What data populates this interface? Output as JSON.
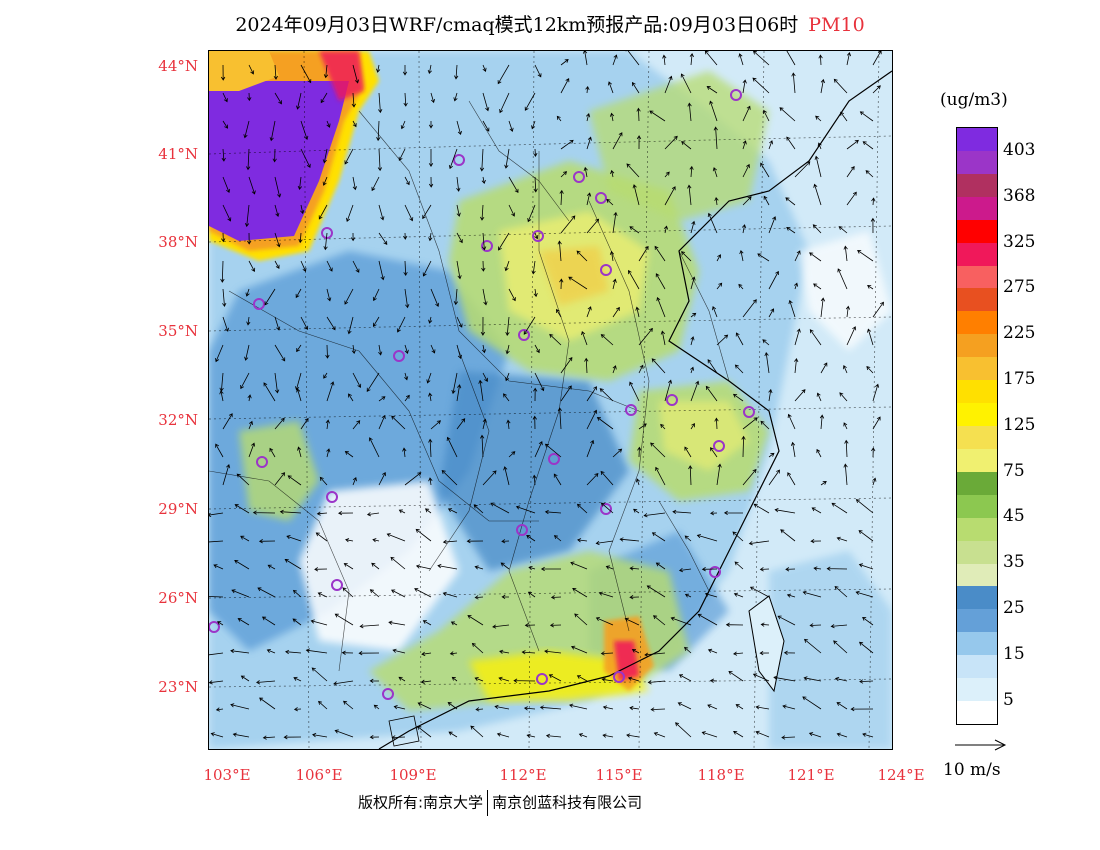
{
  "header": {
    "title": "2024年09月03日WRF/cmaq模式12km预报产品:09月03日06时",
    "pollutant": "PM10"
  },
  "map": {
    "lat_labels": [
      "44°N",
      "41°N",
      "38°N",
      "35°N",
      "32°N",
      "29°N",
      "26°N",
      "23°N"
    ],
    "lon_labels": [
      "103°E",
      "106°E",
      "109°E",
      "112°E",
      "115°E",
      "118°E",
      "121°E",
      "124°E"
    ],
    "lat_range": [
      21.0,
      44.5
    ],
    "lon_range": [
      102.8,
      124.0
    ]
  },
  "legend": {
    "unit": "(ug/m3)",
    "labels": [
      "403",
      "368",
      "325",
      "275",
      "225",
      "175",
      "125",
      "75",
      "45",
      "35",
      "25",
      "15",
      "5"
    ],
    "colors": [
      "#7f2be0",
      "#9b35c8",
      "#b03060",
      "#cc1a8c",
      "#ff0000",
      "#f0185a",
      "#f86060",
      "#e85020",
      "#ff7f00",
      "#f5a020",
      "#f8c030",
      "#ffe000",
      "#fff200",
      "#f5e050",
      "#f0f070",
      "#6aaa38",
      "#8cc850",
      "#b8dc70",
      "#c8e090",
      "#e0ecb8",
      "#4a8cc8",
      "#64a0d8",
      "#96c8ec",
      "#c8e4f8",
      "#dcf0fa",
      "#ffffff"
    ]
  },
  "wind_reference": {
    "label": "10 m/s"
  },
  "footer": {
    "copyright": "版权所有:南京大学",
    "company": "南京创蓝科技有限公司"
  }
}
